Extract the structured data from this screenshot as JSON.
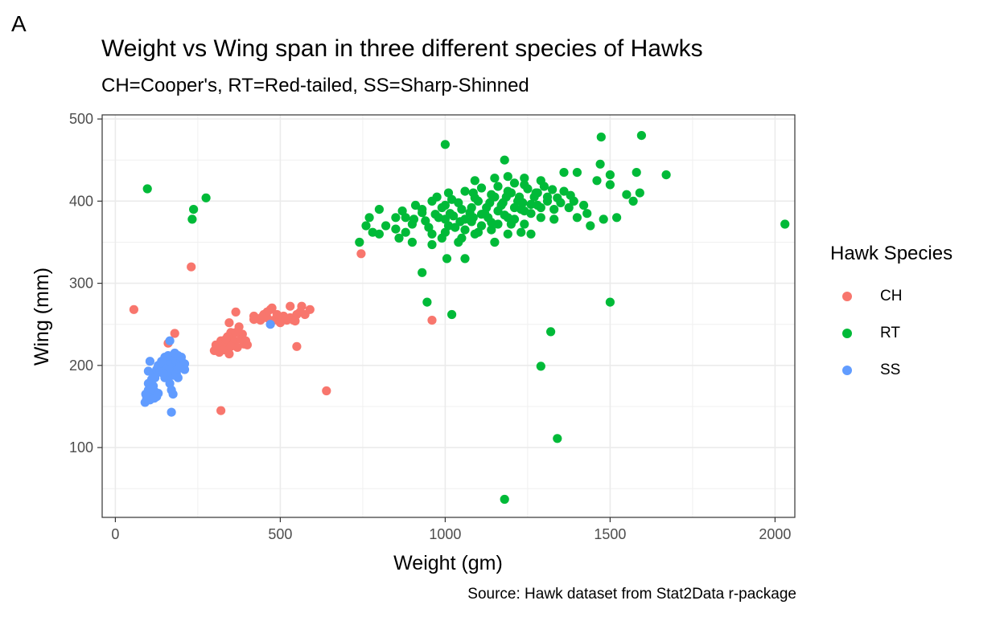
{
  "panel_tag": "A",
  "chart_data": {
    "type": "scatter",
    "title": "Weight vs Wing span in three different species of Hawks",
    "subtitle": "CH=Cooper's, RT=Red-tailed, SS=Sharp-Shinned",
    "caption": "Source: Hawk dataset from Stat2Data r-package",
    "xlabel": "Weight (gm)",
    "ylabel": "Wing (mm)",
    "xlim": [
      -40,
      2060
    ],
    "ylim": [
      15,
      505
    ],
    "xticks": [
      0,
      500,
      1000,
      1500,
      2000
    ],
    "yticks": [
      100,
      200,
      300,
      400,
      500
    ],
    "grid": true,
    "legend": {
      "title": "Hawk Species",
      "position": "right"
    },
    "series": [
      {
        "name": "CH",
        "color": "#F8766D",
        "points": [
          [
            56,
            268
          ],
          [
            160,
            227
          ],
          [
            180,
            239
          ],
          [
            230,
            320
          ],
          [
            320,
            145
          ],
          [
            640,
            169
          ],
          [
            745,
            336
          ],
          [
            960,
            255
          ],
          [
            550,
            223
          ],
          [
            300,
            218
          ],
          [
            305,
            225
          ],
          [
            310,
            222
          ],
          [
            315,
            216
          ],
          [
            320,
            230
          ],
          [
            325,
            225
          ],
          [
            330,
            219
          ],
          [
            335,
            228
          ],
          [
            340,
            235
          ],
          [
            345,
            214
          ],
          [
            350,
            240
          ],
          [
            355,
            232
          ],
          [
            345,
            252
          ],
          [
            360,
            228
          ],
          [
            365,
            265
          ],
          [
            370,
            222
          ],
          [
            375,
            247
          ],
          [
            380,
            232
          ],
          [
            385,
            238
          ],
          [
            390,
            226
          ],
          [
            395,
            230
          ],
          [
            400,
            225
          ],
          [
            335,
            232
          ],
          [
            350,
            223
          ],
          [
            365,
            240
          ],
          [
            420,
            260
          ],
          [
            430,
            257
          ],
          [
            440,
            255
          ],
          [
            450,
            262
          ],
          [
            460,
            258
          ],
          [
            470,
            268
          ],
          [
            475,
            270
          ],
          [
            480,
            255
          ],
          [
            490,
            262
          ],
          [
            500,
            258
          ],
          [
            510,
            260
          ],
          [
            520,
            255
          ],
          [
            530,
            258
          ],
          [
            540,
            255
          ],
          [
            550,
            262
          ],
          [
            560,
            265
          ],
          [
            565,
            272
          ],
          [
            575,
            262
          ],
          [
            590,
            268
          ],
          [
            530,
            272
          ],
          [
            460,
            265
          ],
          [
            500,
            252
          ],
          [
            520,
            257
          ],
          [
            545,
            254
          ],
          [
            420,
            256
          ],
          [
            445,
            259
          ]
        ]
      },
      {
        "name": "RT",
        "color": "#00BA38",
        "points": [
          [
            97,
            415
          ],
          [
            233,
            378
          ],
          [
            237,
            390
          ],
          [
            275,
            404
          ],
          [
            1000,
            469
          ],
          [
            1180,
            450
          ],
          [
            1473,
            478
          ],
          [
            1595,
            480
          ],
          [
            1670,
            432
          ],
          [
            2030,
            372
          ],
          [
            930,
            313
          ],
          [
            945,
            277
          ],
          [
            1020,
            262
          ],
          [
            1060,
            330
          ],
          [
            1320,
            241
          ],
          [
            1290,
            199
          ],
          [
            1340,
            111
          ],
          [
            1180,
            37
          ],
          [
            1500,
            277
          ],
          [
            740,
            350
          ],
          [
            760,
            370
          ],
          [
            770,
            380
          ],
          [
            800,
            390
          ],
          [
            850,
            380
          ],
          [
            1005,
            330
          ],
          [
            1470,
            445
          ],
          [
            1500,
            432
          ],
          [
            1590,
            410
          ],
          [
            1580,
            435
          ],
          [
            1400,
            435
          ],
          [
            1520,
            380
          ],
          [
            1480,
            378
          ],
          [
            1230,
            362
          ],
          [
            1260,
            360
          ],
          [
            1400,
            380
          ],
          [
            1440,
            370
          ],
          [
            1570,
            400
          ],
          [
            1550,
            408
          ],
          [
            1460,
            425
          ],
          [
            1360,
            435
          ],
          [
            1330,
            378
          ],
          [
            1500,
            420
          ],
          [
            1380,
            407
          ],
          [
            1430,
            385
          ],
          [
            800,
            360
          ],
          [
            860,
            355
          ],
          [
            900,
            350
          ],
          [
            960,
            347
          ],
          [
            1050,
            355
          ],
          [
            1100,
            362
          ],
          [
            1150,
            350
          ],
          [
            1200,
            372
          ],
          [
            1000,
            378
          ],
          [
            1050,
            390
          ],
          [
            1100,
            400
          ],
          [
            1150,
            405
          ],
          [
            1200,
            410
          ],
          [
            1250,
            415
          ],
          [
            1300,
            418
          ],
          [
            1020,
            402
          ],
          [
            1080,
            392
          ],
          [
            1120,
            385
          ],
          [
            1170,
            395
          ],
          [
            1220,
            400
          ],
          [
            1270,
            405
          ],
          [
            980,
            380
          ],
          [
            1030,
            368
          ],
          [
            1080,
            375
          ],
          [
            1130,
            380
          ],
          [
            1180,
            383
          ],
          [
            1230,
            390
          ],
          [
            1280,
            395
          ],
          [
            900,
            372
          ],
          [
            950,
            368
          ],
          [
            1000,
            362
          ],
          [
            1060,
            365
          ],
          [
            1110,
            370
          ],
          [
            1160,
            372
          ],
          [
            1210,
            378
          ],
          [
            1260,
            385
          ],
          [
            880,
            380
          ],
          [
            930,
            386
          ],
          [
            990,
            392
          ],
          [
            1040,
            398
          ],
          [
            1090,
            404
          ],
          [
            1140,
            408
          ],
          [
            1190,
            412
          ],
          [
            1240,
            420
          ],
          [
            1290,
            425
          ],
          [
            850,
            366
          ],
          [
            820,
            370
          ],
          [
            780,
            362
          ],
          [
            870,
            388
          ],
          [
            910,
            395
          ],
          [
            960,
            400
          ],
          [
            1010,
            410
          ],
          [
            1060,
            412
          ],
          [
            1110,
            416
          ],
          [
            1160,
            418
          ],
          [
            1210,
            422
          ],
          [
            960,
            360
          ],
          [
            1010,
            370
          ],
          [
            1060,
            378
          ],
          [
            1110,
            384
          ],
          [
            1160,
            388
          ],
          [
            1210,
            392
          ],
          [
            1260,
            396
          ],
          [
            1310,
            400
          ],
          [
            1330,
            390
          ],
          [
            1350,
            398
          ],
          [
            1375,
            392
          ],
          [
            1390,
            400
          ],
          [
            1420,
            395
          ],
          [
            940,
            376
          ],
          [
            970,
            384
          ],
          [
            1025,
            382
          ],
          [
            1075,
            386
          ],
          [
            1125,
            392
          ],
          [
            1175,
            398
          ],
          [
            1225,
            405
          ],
          [
            1275,
            410
          ],
          [
            1325,
            414
          ],
          [
            1140,
            365
          ],
          [
            1190,
            360
          ],
          [
            1240,
            372
          ],
          [
            1290,
            380
          ],
          [
            990,
            355
          ],
          [
            1040,
            350
          ],
          [
            1090,
            360
          ],
          [
            1140,
            374
          ],
          [
            1190,
            380
          ],
          [
            1240,
            388
          ],
          [
            1290,
            392
          ],
          [
            1090,
            425
          ],
          [
            1150,
            428
          ],
          [
            1190,
            430
          ],
          [
            1240,
            428
          ],
          [
            1280,
            410
          ],
          [
            1310,
            405
          ],
          [
            1340,
            404
          ],
          [
            1360,
            412
          ],
          [
            880,
            362
          ],
          [
            905,
            378
          ],
          [
            1015,
            385
          ],
          [
            1045,
            375
          ],
          [
            1085,
            380
          ],
          [
            1135,
            398
          ],
          [
            1185,
            405
          ],
          [
            1235,
            398
          ],
          [
            1085,
            410
          ],
          [
            930,
            390
          ],
          [
            1000,
            395
          ],
          [
            975,
            405
          ]
        ]
      },
      {
        "name": "SS",
        "color": "#619CFF",
        "points": [
          [
            170,
            143
          ],
          [
            165,
            230
          ],
          [
            470,
            250
          ],
          [
            90,
            155
          ],
          [
            95,
            160
          ],
          [
            100,
            170
          ],
          [
            105,
            158
          ],
          [
            110,
            165
          ],
          [
            115,
            175
          ],
          [
            120,
            168
          ],
          [
            125,
            162
          ],
          [
            100,
            178
          ],
          [
            92,
            165
          ],
          [
            108,
            172
          ],
          [
            118,
            160
          ],
          [
            130,
            166
          ],
          [
            100,
            193
          ],
          [
            105,
            205
          ],
          [
            110,
            183
          ],
          [
            115,
            190
          ],
          [
            120,
            185
          ],
          [
            125,
            195
          ],
          [
            130,
            200
          ],
          [
            135,
            192
          ],
          [
            140,
            198
          ],
          [
            145,
            202
          ],
          [
            150,
            205
          ],
          [
            155,
            195
          ],
          [
            160,
            200
          ],
          [
            165,
            208
          ],
          [
            170,
            203
          ],
          [
            175,
            210
          ],
          [
            180,
            198
          ],
          [
            185,
            205
          ],
          [
            190,
            212
          ],
          [
            195,
            200
          ],
          [
            200,
            206
          ],
          [
            205,
            198
          ],
          [
            210,
            202
          ],
          [
            150,
            185
          ],
          [
            155,
            190
          ],
          [
            160,
            186
          ],
          [
            165,
            192
          ],
          [
            170,
            195
          ],
          [
            175,
            188
          ],
          [
            180,
            193
          ],
          [
            185,
            190
          ],
          [
            190,
            196
          ],
          [
            195,
            198
          ],
          [
            170,
            170
          ],
          [
            175,
            165
          ],
          [
            165,
            178
          ],
          [
            160,
            212
          ],
          [
            180,
            215
          ],
          [
            200,
            210
          ],
          [
            210,
            195
          ],
          [
            190,
            185
          ],
          [
            145,
            190
          ],
          [
            150,
            210
          ],
          [
            140,
            205
          ]
        ]
      }
    ]
  }
}
